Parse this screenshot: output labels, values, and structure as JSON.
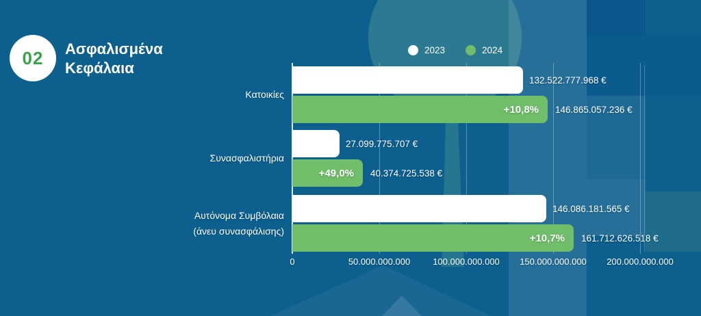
{
  "header": {
    "number": "02",
    "title": "Ασφαλισμένα Κεφάλαια",
    "title_lines": [
      "Ασφαλισμένα",
      "Κεφάλαια"
    ]
  },
  "colors": {
    "background": "#0d5f8e",
    "bar_2023": "#ffffff",
    "bar_2024": "#70bd6a",
    "badge_number_green": "#3aa349",
    "text": "#ffffff"
  },
  "chart_data": {
    "type": "bar",
    "orientation": "horizontal",
    "title": "Ασφαλισμένα Κεφάλαια",
    "unit": "€",
    "grid": true,
    "legend_position": "top-center",
    "series": [
      {
        "name": "2023",
        "color": "#ffffff"
      },
      {
        "name": "2024",
        "color": "#70bd6a"
      }
    ],
    "categories": [
      "Κατοικίες",
      "Συνασφαλιστήρια",
      "Αυτόνομα Συμβόλαια (άνευ συνασφάλισης)"
    ],
    "groups": [
      {
        "category": "Κατοικίες",
        "category_lines": [
          "Κατοικίες"
        ],
        "values": {
          "2023": 132522777968,
          "2024": 146865057236
        },
        "value_labels": {
          "2023": "132.522.777.968 €",
          "2024": "146.865.057.236 €"
        },
        "delta_label": "+10,8%"
      },
      {
        "category": "Συνασφαλιστήρια",
        "category_lines": [
          "Συνασφαλιστήρια"
        ],
        "values": {
          "2023": 27099775707,
          "2024": 40374725538
        },
        "value_labels": {
          "2023": "27.099.775.707 €",
          "2024": "40.374.725.538 €"
        },
        "delta_label": "+49,0%"
      },
      {
        "category": "Αυτόνομα Συμβόλαια (άνευ συνασφάλισης)",
        "category_lines": [
          "Αυτόνομα Συμβόλαια",
          "(άνευ συνασφάλισης)"
        ],
        "values": {
          "2023": 146086181565,
          "2024": 161712626518
        },
        "value_labels": {
          "2023": "146.086.181.565 €",
          "2024": "161.712.626.518 €"
        },
        "delta_label": "+10,7%"
      }
    ],
    "x_axis": {
      "min": 0,
      "max": 200000000000,
      "tick_interval": 50000000000,
      "tick_labels": [
        "0",
        "50.000.000.000",
        "100.000.000.000",
        "150.000.000.000",
        "200.000.000.000"
      ]
    }
  }
}
